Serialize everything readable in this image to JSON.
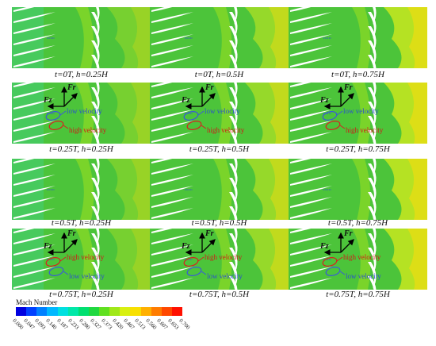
{
  "panels": [
    {
      "caption": "t=0T, h=0.25H"
    },
    {
      "caption": "t=0T, h=0.5H"
    },
    {
      "caption": "t=0T, h=0.75H"
    },
    {
      "caption": "t=0.25T, h=0.25H",
      "annot": {
        "fz": "Fz",
        "fr": "Fr",
        "first": "low velocity",
        "second": "high velocity"
      }
    },
    {
      "caption": "t=0.25T, h=0.5H",
      "annot": {
        "fz": "Fz",
        "fr": "Fr",
        "first": "low velocity",
        "second": "high velocity"
      }
    },
    {
      "caption": "t=0.25T, h=0.75H",
      "annot": {
        "fz": "Fz",
        "fr": "Fr",
        "first": "low velocity",
        "second": "high velocity"
      }
    },
    {
      "caption": "t=0.5T, h=0.25H"
    },
    {
      "caption": "t=0.5T, h=0.5H"
    },
    {
      "caption": "t=0.5T, h=0.75H"
    },
    {
      "caption": "t=0.75T, h=0.25H",
      "annot": {
        "fz": "Fz",
        "fr": "Fr",
        "first": "high velocity",
        "second": "low velocity"
      }
    },
    {
      "caption": "t=0.75T, h=0.5H",
      "annot": {
        "fz": "Fz",
        "fr": "Fr",
        "first": "high velocity",
        "second": "low velocity"
      }
    },
    {
      "caption": "t=0.75T, h=0.75H",
      "annot": {
        "fz": "Fz",
        "fr": "Fr",
        "first": "high velocity",
        "second": "low velocity"
      }
    }
  ],
  "legend": {
    "title": "Mach Number",
    "ticks": [
      "0.000",
      "0.047",
      "0.093",
      "0.140",
      "0.187",
      "0.233",
      "0.280",
      "0.327",
      "0.373",
      "0.420",
      "0.467",
      "0.513",
      "0.560",
      "0.607",
      "0.653",
      "0.700"
    ],
    "colors": [
      "#0000e0",
      "#0040ff",
      "#0080ff",
      "#00b8ff",
      "#00e0e0",
      "#00e8a8",
      "#00e070",
      "#20d840",
      "#60e020",
      "#a0e818",
      "#d8f010",
      "#f8e000",
      "#ffb000",
      "#ff7c00",
      "#ff4800",
      "#ff1000"
    ]
  },
  "colors": {
    "field": "#4cc43a",
    "blade": "#ffffff",
    "low_ellipse": "#3a5ad8",
    "high_ellipse": "#d82020"
  }
}
